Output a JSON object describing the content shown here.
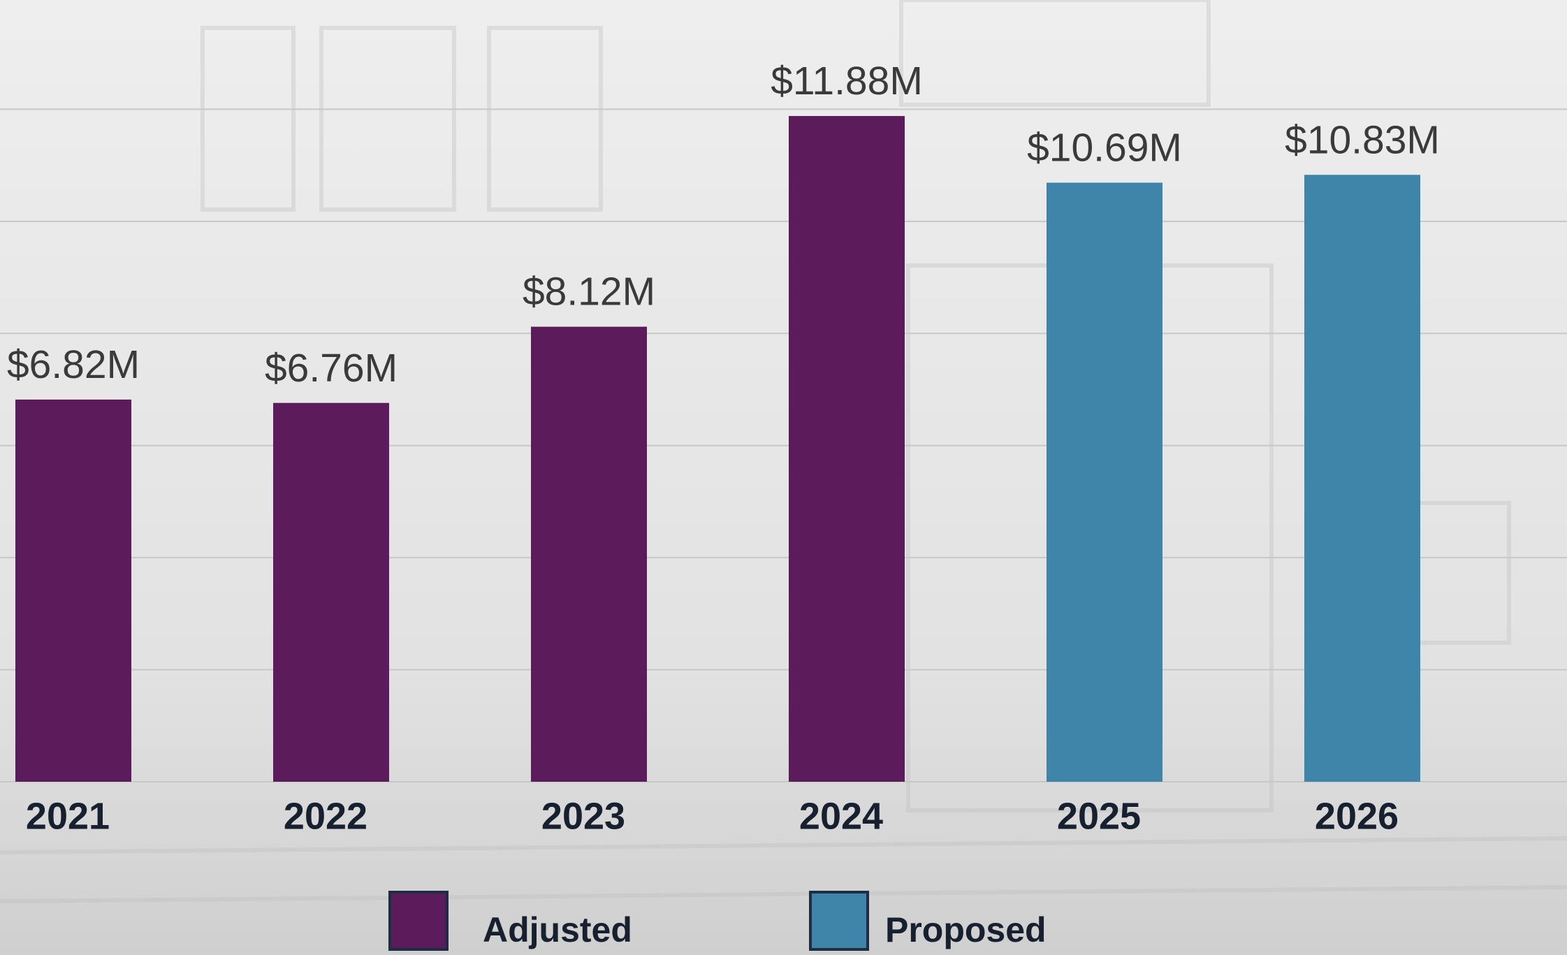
{
  "chart_data": {
    "type": "bar",
    "categories": [
      "2021",
      "2022",
      "2023",
      "2024",
      "2025",
      "2026"
    ],
    "series": [
      {
        "name": "Adjusted",
        "color": "#5c1b5a",
        "values": [
          6.82,
          6.76,
          8.12,
          11.88,
          null,
          null
        ],
        "value_labels": [
          "$6.82M",
          "$6.76M",
          "$8.12M",
          "$11.88M",
          null,
          null
        ]
      },
      {
        "name": "Proposed",
        "color": "#3f84a9",
        "values": [
          null,
          null,
          null,
          null,
          10.69,
          10.83
        ],
        "value_labels": [
          null,
          null,
          null,
          null,
          "$10.69M",
          "$10.83M"
        ]
      }
    ],
    "ylim": [
      0,
      14
    ],
    "yticks": [
      0,
      2,
      4,
      6,
      8,
      10,
      12
    ],
    "grid": true
  }
}
